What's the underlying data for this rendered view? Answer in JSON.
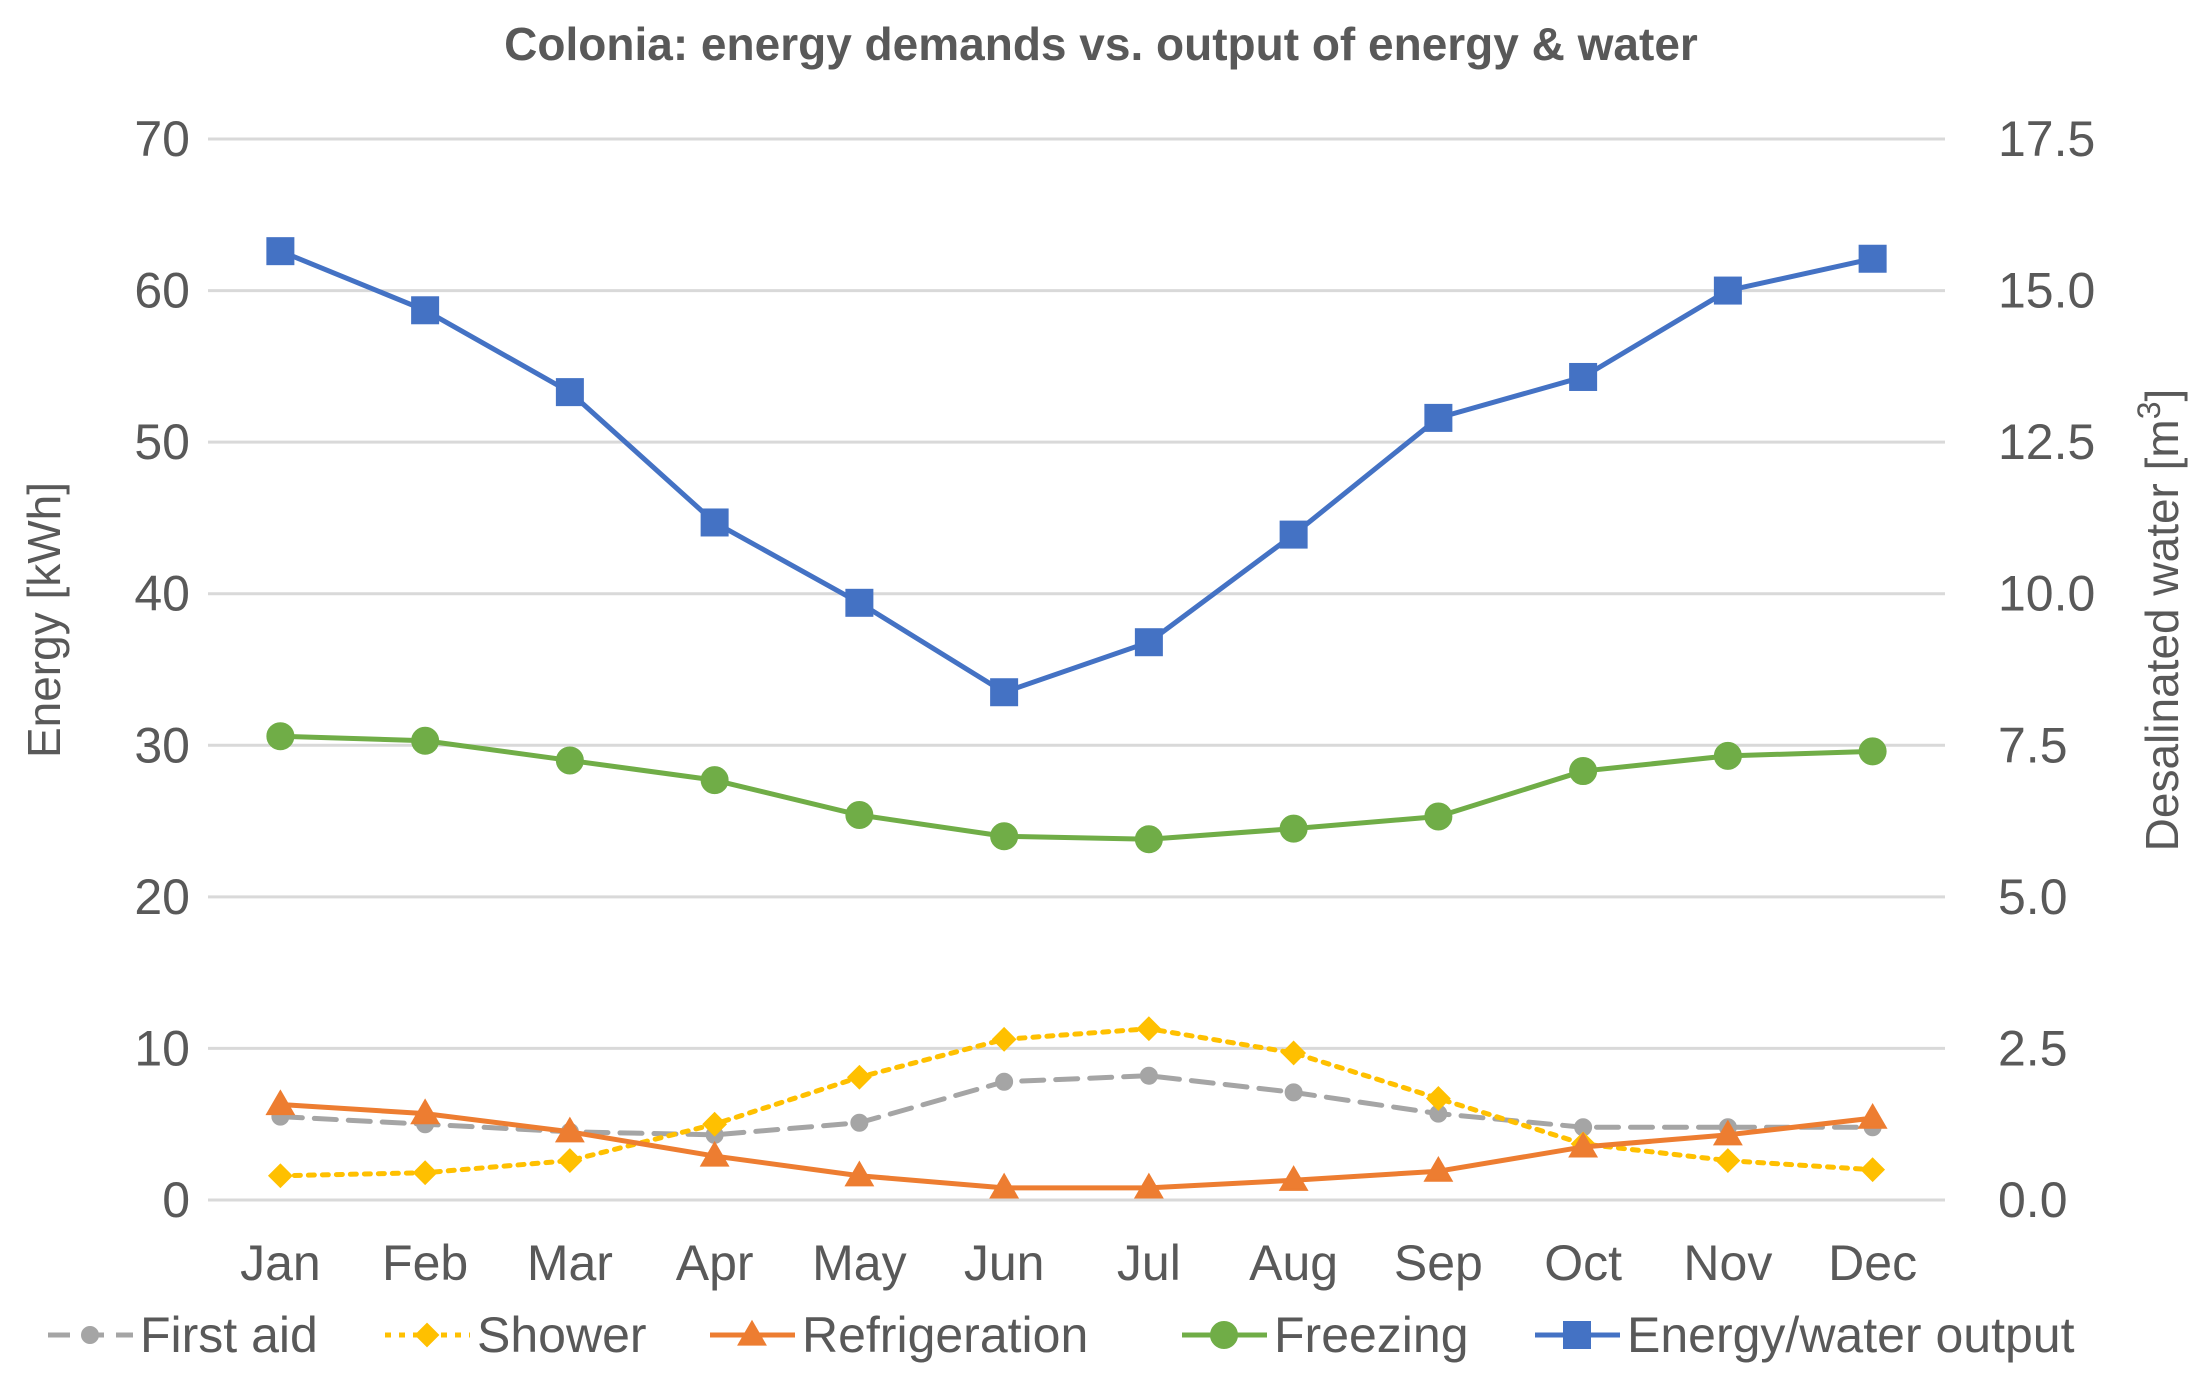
{
  "chart_data": {
    "type": "line",
    "title": "Colonia: energy demands vs. output of energy & water",
    "categories": [
      "Jan",
      "Feb",
      "Mar",
      "Apr",
      "May",
      "Jun",
      "Jul",
      "Aug",
      "Sep",
      "Oct",
      "Nov",
      "Dec"
    ],
    "ylabel": "Energy [kWh]",
    "y2label_main": "Desalinated water [m",
    "y2label_sup": "3",
    "y2label_end": "]",
    "ylim": [
      0,
      70
    ],
    "y_ticks": [
      "0",
      "10",
      "20",
      "30",
      "40",
      "50",
      "60",
      "70"
    ],
    "y2lim": [
      0,
      17.5
    ],
    "y2_ticks": [
      "0.0",
      "2.5",
      "5.0",
      "7.5",
      "10.0",
      "12.5",
      "15.0",
      "17.5"
    ],
    "grid": true,
    "legend_position": "bottom",
    "series": [
      {
        "name": "First aid",
        "axis": "left",
        "color": "#a5a5a5",
        "dash": "dashed",
        "marker": "circle",
        "values": [
          5.5,
          5.0,
          4.5,
          4.3,
          5.1,
          7.8,
          8.2,
          7.1,
          5.7,
          4.8,
          4.8,
          4.8
        ]
      },
      {
        "name": "Shower",
        "axis": "left",
        "color": "#ffc000",
        "dash": "dotted",
        "marker": "diamond",
        "values": [
          1.6,
          1.8,
          2.6,
          5.0,
          8.1,
          10.6,
          11.3,
          9.7,
          6.7,
          3.7,
          2.6,
          2.0
        ]
      },
      {
        "name": "Refrigeration",
        "axis": "left",
        "color": "#ed7d31",
        "dash": "solid",
        "marker": "triangle",
        "values": [
          6.3,
          5.7,
          4.5,
          2.9,
          1.6,
          0.8,
          0.8,
          1.3,
          1.9,
          3.5,
          4.3,
          5.4
        ]
      },
      {
        "name": "Freezing",
        "axis": "left",
        "color": "#70ad47",
        "dash": "solid",
        "marker": "circle",
        "values": [
          30.6,
          30.3,
          29.0,
          27.7,
          25.4,
          24.0,
          23.8,
          24.5,
          25.3,
          28.3,
          29.3,
          29.6
        ]
      },
      {
        "name": "Energy/water output",
        "axis": "left",
        "color": "#4472c4",
        "dash": "solid",
        "marker": "square",
        "values": [
          62.6,
          58.7,
          53.3,
          44.7,
          39.4,
          33.5,
          36.8,
          43.9,
          51.6,
          54.3,
          60.0,
          62.1
        ]
      }
    ]
  }
}
